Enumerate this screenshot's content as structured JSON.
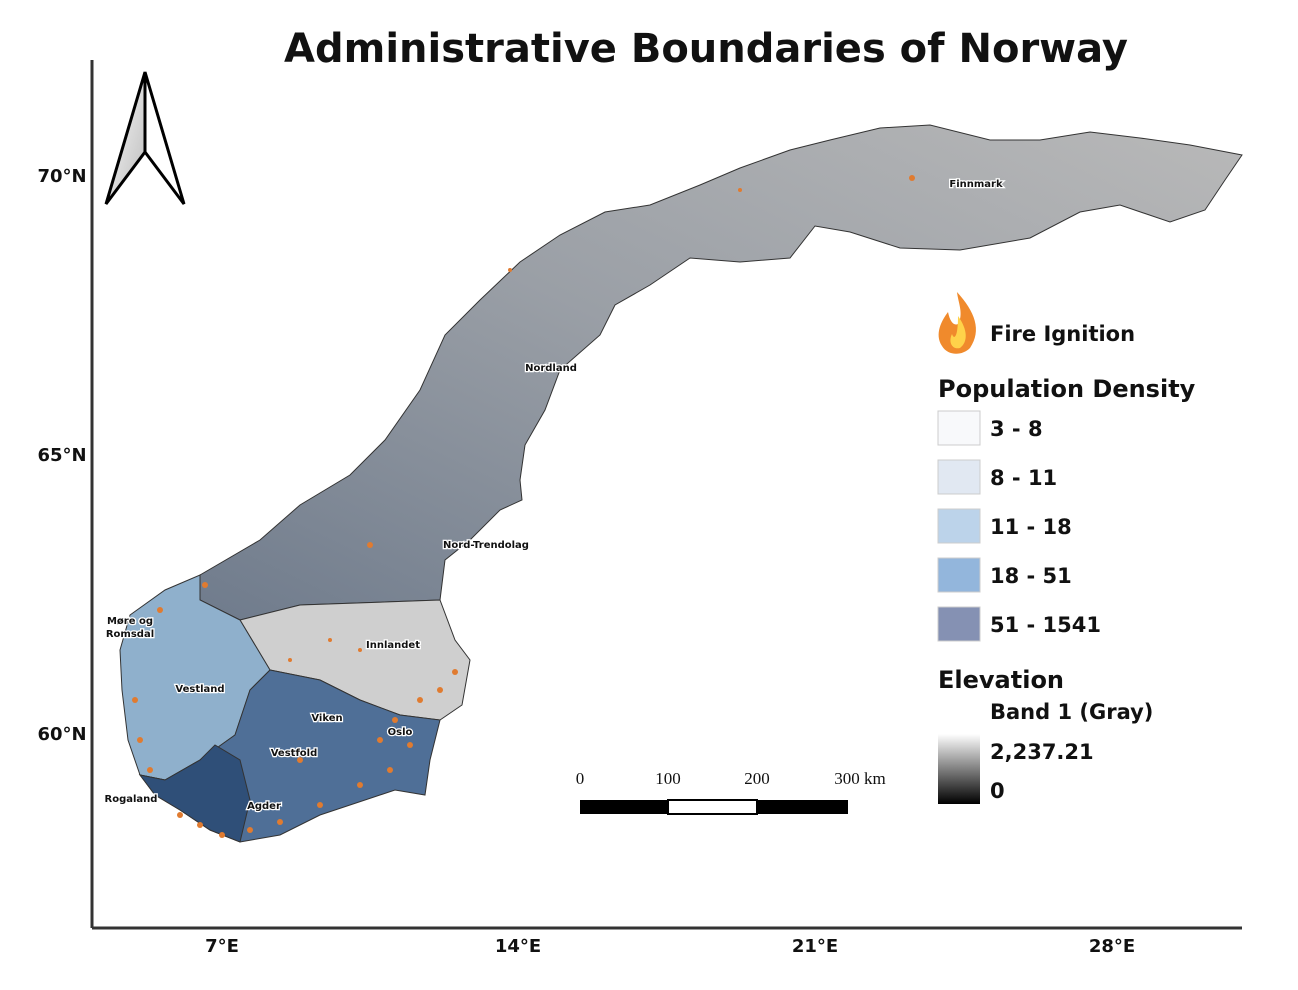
{
  "title": "Administrative Boundaries of Norway",
  "latitude_labels": [
    "70°N",
    "65°N",
    "60°N"
  ],
  "longitude_labels": [
    "7°E",
    "14°E",
    "21°E",
    "28°E"
  ],
  "region_labels": [
    "Finnmark",
    "Nordland",
    "Nord-Trendolag",
    "Innlandet",
    "Vestland",
    "Viken",
    "Oslo",
    "Vestfold",
    "Agder",
    "Rogaland",
    [
      "Møre og",
      "Romsdal"
    ]
  ],
  "legend": {
    "fire": "Fire Ignition",
    "population_title": "Population Density",
    "population_classes": [
      "3 - 8",
      "8 - 11",
      "11 - 18",
      "18 - 51",
      "51 - 1541"
    ],
    "elevation_title": "Elevation",
    "elevation_band": "Band 1 (Gray)",
    "elevation_max": "2,237.21",
    "elevation_min": "0"
  },
  "scale_bar": [
    "0",
    "100",
    "200",
    "300 km"
  ]
}
